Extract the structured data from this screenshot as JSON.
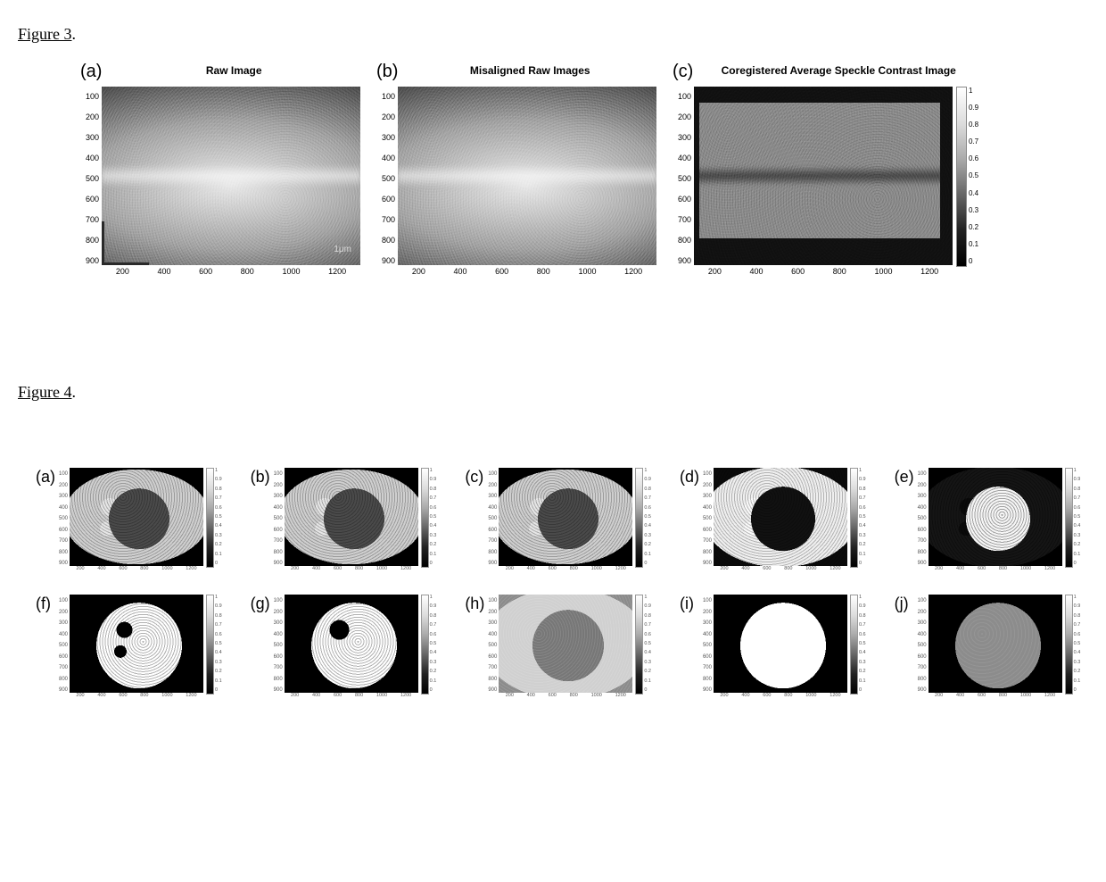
{
  "figure3": {
    "heading_underlined": "Figure 3",
    "heading_tail": ".",
    "panels": [
      {
        "letter": "(a)",
        "title": "Raw Image",
        "yticks": [
          "100",
          "200",
          "300",
          "400",
          "500",
          "600",
          "700",
          "800",
          "900"
        ],
        "xticks": [
          "200",
          "400",
          "600",
          "800",
          "1000",
          "1200"
        ],
        "show_angle_marker": true,
        "scale_label": "1μm",
        "speckle_class": "speckle",
        "has_colorbar": false
      },
      {
        "letter": "(b)",
        "title": "Misaligned Raw Images",
        "yticks": [
          "100",
          "200",
          "300",
          "400",
          "500",
          "600",
          "700",
          "800",
          "900"
        ],
        "xticks": [
          "200",
          "400",
          "600",
          "800",
          "1000",
          "1200"
        ],
        "show_angle_marker": false,
        "speckle_class": "speckle",
        "has_colorbar": false
      },
      {
        "letter": "(c)",
        "title": "Coregistered Average Speckle Contrast Image",
        "yticks": [
          "100",
          "200",
          "300",
          "400",
          "500",
          "600",
          "700",
          "800",
          "900"
        ],
        "xticks": [
          "200",
          "400",
          "600",
          "800",
          "1000",
          "1200"
        ],
        "show_angle_marker": false,
        "speckle_class": "speckle c",
        "has_colorbar": true,
        "colorbar_ticks": [
          "1",
          "0.9",
          "0.8",
          "0.7",
          "0.6",
          "0.5",
          "0.4",
          "0.3",
          "0.2",
          "0.1",
          "0"
        ]
      }
    ]
  },
  "figure4": {
    "heading_underlined": "Figure 4",
    "heading_tail": ".",
    "yticks": [
      "100",
      "200",
      "300",
      "400",
      "500",
      "600",
      "700",
      "800",
      "900"
    ],
    "xticks": [
      "200",
      "400",
      "600",
      "800",
      "1000",
      "1200"
    ],
    "colorbar_ticks": [
      "1",
      "0.9",
      "0.8",
      "0.7",
      "0.6",
      "0.5",
      "0.4",
      "0.3",
      "0.2",
      "0.1",
      "0"
    ],
    "panels": [
      {
        "letter": "(a)",
        "img_class": "ct-base"
      },
      {
        "letter": "(b)",
        "img_class": "ct-base"
      },
      {
        "letter": "(c)",
        "img_class": "ct-base"
      },
      {
        "letter": "(d)",
        "img_class": "ct-base dk"
      },
      {
        "letter": "(e)",
        "img_class": "ct-base inv"
      },
      {
        "letter": "(f)",
        "img_class": "mask-white"
      },
      {
        "letter": "(g)",
        "img_class": "mask-white half"
      },
      {
        "letter": "(h)",
        "img_class": "ct-soft"
      },
      {
        "letter": "(i)",
        "img_class": "mask-white clean"
      },
      {
        "letter": "(j)",
        "img_class": "ct-graycirc"
      }
    ]
  },
  "colors": {
    "page_bg": "#ffffff",
    "text": "#000000",
    "tick_text": "#555555",
    "cb_border": "#888888"
  }
}
